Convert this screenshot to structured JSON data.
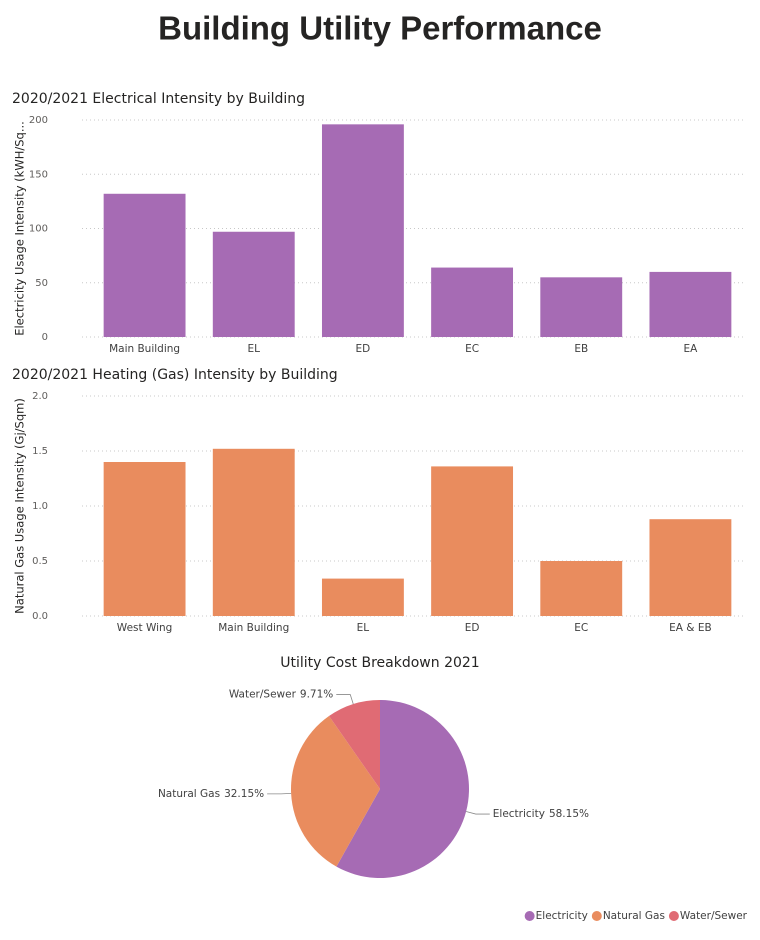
{
  "title": "Building Utility Performance",
  "chart_data": [
    {
      "type": "bar",
      "title": "2020/2021 Electrical Intensity by Building",
      "y_label": "Electricity Usage Intensity (kWH/Sq...",
      "categories": [
        "Main Building",
        "EL",
        "ED",
        "EC",
        "EB",
        "EA"
      ],
      "values": [
        132,
        97,
        196,
        64,
        55,
        60
      ],
      "color": "#a66bb4",
      "ylim": [
        0,
        200
      ],
      "yticks": [
        0,
        50,
        100,
        150,
        200
      ],
      "grid": true
    },
    {
      "type": "bar",
      "title": "2020/2021 Heating (Gas) Intensity by Building",
      "y_label": "Natural Gas Usage Intensity (Gj/Sqm)",
      "categories": [
        "West Wing",
        "Main Building",
        "EL",
        "ED",
        "EC",
        "EA & EB"
      ],
      "values": [
        1.4,
        1.52,
        0.34,
        1.36,
        0.5,
        0.88
      ],
      "color": "#e98c5e",
      "ylim": [
        0,
        2
      ],
      "yticks": [
        {
          "value": 0,
          "label": "0.0"
        },
        0.5,
        {
          "value": 1,
          "label": "1.0"
        },
        1.5,
        {
          "value": 2,
          "label": "2.0"
        }
      ],
      "grid": true
    },
    {
      "type": "pie",
      "title": "Utility Cost Breakdown 2021",
      "categories": [
        "Electricity",
        "Natural Gas",
        "Water/Sewer"
      ],
      "values": [
        58.15,
        32.15,
        9.71
      ],
      "value_labels": [
        "58.15%",
        "32.15%",
        "9.71%"
      ],
      "colors": [
        "#a66bb4",
        "#e98c5e",
        "#e06b74"
      ],
      "legend": "bottom-right"
    }
  ]
}
